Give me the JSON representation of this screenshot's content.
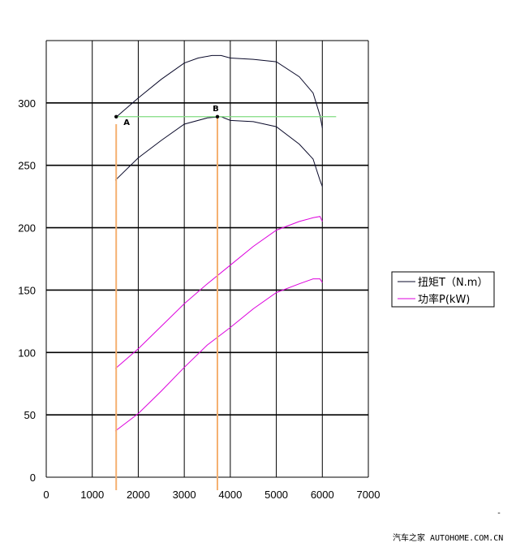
{
  "chart_data": {
    "type": "line",
    "title": "",
    "xlabel": "",
    "ylabel": "",
    "xlim": [
      0,
      7000
    ],
    "ylim": [
      0,
      350
    ],
    "x_ticks": [
      "0",
      "1000",
      "2000",
      "3000",
      "4000",
      "5000",
      "6000",
      "7000"
    ],
    "y_ticks": [
      "0",
      "50",
      "100",
      "150",
      "200",
      "250",
      "300"
    ],
    "grid": true,
    "legend_position": "right",
    "series": [
      {
        "name": "扭矩T（N.m）",
        "color": "#0a0a2a",
        "x": [
          1500,
          2000,
          2500,
          3000,
          3300,
          3600,
          3800,
          4000,
          4500,
          5000,
          5500,
          5800,
          5950,
          6000
        ],
        "y": [
          288,
          304,
          319,
          332,
          336,
          338,
          338,
          336,
          335,
          333,
          321,
          308,
          290,
          280
        ]
      },
      {
        "name": "扭矩T（N.m）",
        "color": "#0a0a2a",
        "x": [
          1500,
          2000,
          2500,
          3000,
          3500,
          3800,
          4000,
          4500,
          5000,
          5500,
          5800,
          5950,
          6000
        ],
        "y": [
          238,
          256,
          270,
          283,
          288,
          289,
          286,
          285,
          281,
          267,
          255,
          238,
          233
        ]
      },
      {
        "name": "功率P(kW)",
        "color": "#dd00dd",
        "x": [
          1500,
          2000,
          2500,
          3000,
          3500,
          4000,
          4500,
          5000,
          5500,
          5800,
          5950,
          6000
        ],
        "y": [
          87,
          103,
          121,
          139,
          155,
          170,
          185,
          198,
          205,
          208,
          209,
          205
        ]
      },
      {
        "name": "功率P(kW)",
        "color": "#dd00dd",
        "x": [
          1500,
          2000,
          2500,
          3000,
          3500,
          4000,
          4500,
          5000,
          5500,
          5800,
          5950,
          6000
        ],
        "y": [
          37,
          51,
          69,
          88,
          106,
          120,
          135,
          148,
          155,
          159,
          159,
          156
        ]
      }
    ],
    "reference_line": {
      "color": "#80dd80",
      "y": 289,
      "x": [
        1500,
        6300
      ]
    },
    "markers": [
      {
        "label": "A",
        "x": 1520,
        "y": 289,
        "vline_color": "#f5b070",
        "vline_y": 283
      },
      {
        "label": "B",
        "x": 3720,
        "y": 289,
        "vline_color": "#f5b070",
        "vline_y": 289
      }
    ]
  },
  "legend": [
    {
      "label": "扭矩T（N.m）",
      "color": "#0a0a2a"
    },
    {
      "label": "功率P(kW)",
      "color": "#dd00dd"
    }
  ],
  "footer": {
    "text": "汽车之家 AUTOHOME.COM.CN",
    "dash": "-"
  }
}
